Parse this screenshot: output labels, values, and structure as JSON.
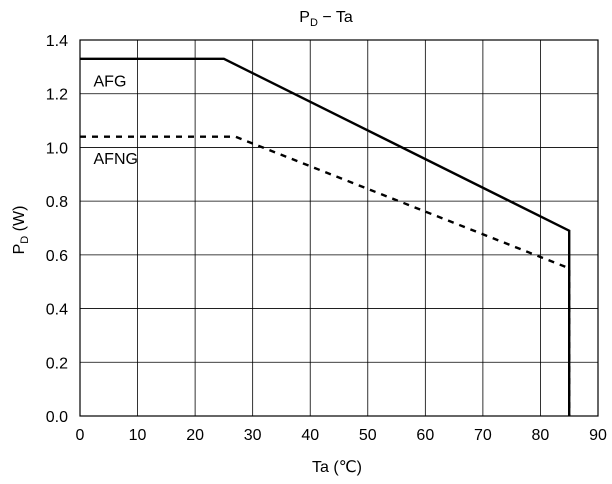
{
  "chart_data": {
    "type": "line",
    "title": "P",
    "title_subscript": "D",
    "title_suffix": " − Ta",
    "xlabel": "Ta (℃)",
    "ylabel": "P",
    "ylabel_subscript": "D",
    "ylabel_suffix": " (W)",
    "xlim": [
      0,
      90
    ],
    "ylim": [
      0.0,
      1.4
    ],
    "xticks": [
      "0",
      "10",
      "20",
      "30",
      "40",
      "50",
      "60",
      "70",
      "80",
      "90"
    ],
    "yticks": [
      "0.0",
      "0.2",
      "0.4",
      "0.6",
      "0.8",
      "1.0",
      "1.2",
      "1.4"
    ],
    "grid": true,
    "series": [
      {
        "name": "AFG",
        "style": "solid",
        "color": "#000000",
        "points": [
          [
            0,
            1.33
          ],
          [
            25,
            1.33
          ],
          [
            85,
            0.69
          ],
          [
            85,
            0.0
          ]
        ]
      },
      {
        "name": "AFNG",
        "style": "dashed",
        "color": "#000000",
        "points": [
          [
            0,
            1.04
          ],
          [
            27,
            1.04
          ],
          [
            85,
            0.55
          ],
          [
            85,
            0.0
          ]
        ]
      }
    ],
    "annotations": [
      {
        "text": "AFG",
        "x": 2,
        "y": 1.25
      },
      {
        "text": "AFNG",
        "x": 2,
        "y": 0.96
      }
    ]
  }
}
